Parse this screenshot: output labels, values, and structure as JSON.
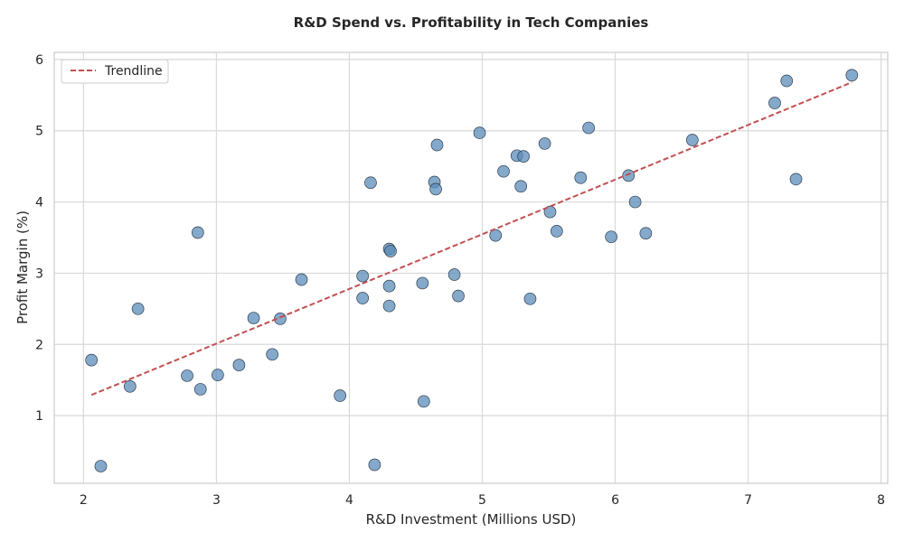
{
  "chart_data": {
    "type": "scatter",
    "title": "R&D Spend vs. Profitability in Tech Companies",
    "xlabel": "R&D Investment (Millions USD)",
    "ylabel": "Profit Margin (%)",
    "xlim": [
      1.78,
      8.05
    ],
    "ylim": [
      0.05,
      6.1
    ],
    "xticks": [
      "2",
      "3",
      "4",
      "5",
      "6",
      "7",
      "8"
    ],
    "yticks": [
      "1",
      "2",
      "3",
      "4",
      "5",
      "6"
    ],
    "grid": true,
    "legend": {
      "position": "top-left",
      "entries": [
        "Trendline"
      ]
    },
    "colors": {
      "points": "#5b8cb9",
      "point_edge": "#2f3e4e",
      "trendline": "#c44e52",
      "grid": "#d9d9d9",
      "frame": "#cccccc"
    },
    "trendline": {
      "x": [
        2.06,
        7.78
      ],
      "y": [
        1.29,
        5.68
      ]
    },
    "points": [
      {
        "x": 2.06,
        "y": 1.78
      },
      {
        "x": 2.13,
        "y": 0.29
      },
      {
        "x": 2.35,
        "y": 1.41
      },
      {
        "x": 2.41,
        "y": 2.5
      },
      {
        "x": 2.78,
        "y": 1.56
      },
      {
        "x": 2.86,
        "y": 3.57
      },
      {
        "x": 2.88,
        "y": 1.37
      },
      {
        "x": 3.01,
        "y": 1.57
      },
      {
        "x": 3.17,
        "y": 1.71
      },
      {
        "x": 3.28,
        "y": 2.37
      },
      {
        "x": 3.42,
        "y": 1.86
      },
      {
        "x": 3.48,
        "y": 2.36
      },
      {
        "x": 3.64,
        "y": 2.91
      },
      {
        "x": 3.93,
        "y": 1.28
      },
      {
        "x": 4.1,
        "y": 2.96
      },
      {
        "x": 4.1,
        "y": 2.65
      },
      {
        "x": 4.16,
        "y": 4.27
      },
      {
        "x": 4.19,
        "y": 0.31
      },
      {
        "x": 4.3,
        "y": 3.34
      },
      {
        "x": 4.31,
        "y": 3.31
      },
      {
        "x": 4.3,
        "y": 2.82
      },
      {
        "x": 4.3,
        "y": 2.54
      },
      {
        "x": 4.55,
        "y": 2.86
      },
      {
        "x": 4.56,
        "y": 1.2
      },
      {
        "x": 4.64,
        "y": 4.28
      },
      {
        "x": 4.65,
        "y": 4.18
      },
      {
        "x": 4.66,
        "y": 4.8
      },
      {
        "x": 4.79,
        "y": 2.98
      },
      {
        "x": 4.82,
        "y": 2.68
      },
      {
        "x": 4.98,
        "y": 4.97
      },
      {
        "x": 5.1,
        "y": 3.53
      },
      {
        "x": 5.16,
        "y": 4.43
      },
      {
        "x": 5.26,
        "y": 4.65
      },
      {
        "x": 5.29,
        "y": 4.22
      },
      {
        "x": 5.31,
        "y": 4.64
      },
      {
        "x": 5.36,
        "y": 2.64
      },
      {
        "x": 5.47,
        "y": 4.82
      },
      {
        "x": 5.51,
        "y": 3.86
      },
      {
        "x": 5.56,
        "y": 3.59
      },
      {
        "x": 5.74,
        "y": 4.34
      },
      {
        "x": 5.8,
        "y": 5.04
      },
      {
        "x": 5.97,
        "y": 3.51
      },
      {
        "x": 6.1,
        "y": 4.37
      },
      {
        "x": 6.15,
        "y": 4.0
      },
      {
        "x": 6.23,
        "y": 3.56
      },
      {
        "x": 6.58,
        "y": 4.87
      },
      {
        "x": 7.2,
        "y": 5.39
      },
      {
        "x": 7.29,
        "y": 5.7
      },
      {
        "x": 7.36,
        "y": 4.32
      },
      {
        "x": 7.78,
        "y": 5.78
      }
    ]
  }
}
